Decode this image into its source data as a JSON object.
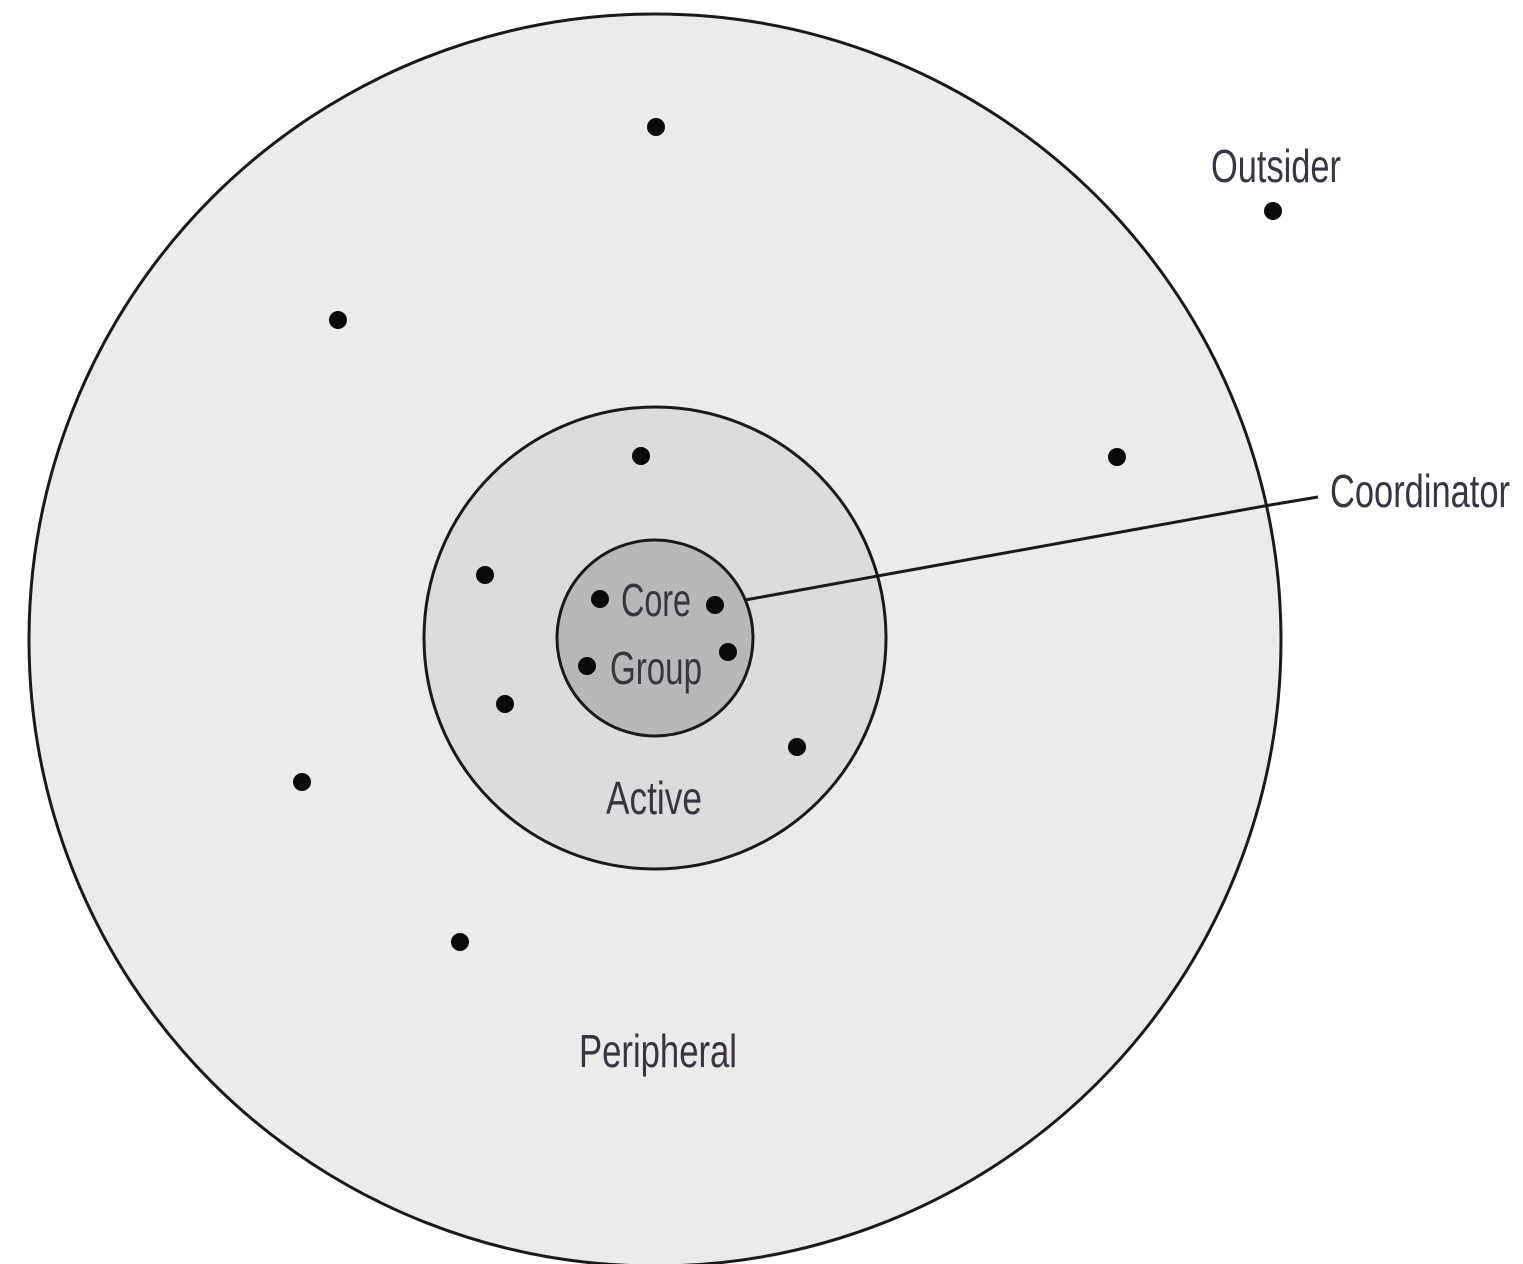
{
  "diagram": {
    "colors": {
      "peripheral_fill": "#ebebeb",
      "active_fill": "#dcdcdc",
      "core_fill": "#b8b8b8",
      "outline": "#1a1a1a",
      "dot": "#0a0a0a",
      "label": "#3a3440"
    },
    "labels": {
      "outsider": "Outsider",
      "coordinator": "Coordinator",
      "core_line1": "Core",
      "core_line2": "Group",
      "active": "Active",
      "peripheral": "Peripheral"
    }
  }
}
